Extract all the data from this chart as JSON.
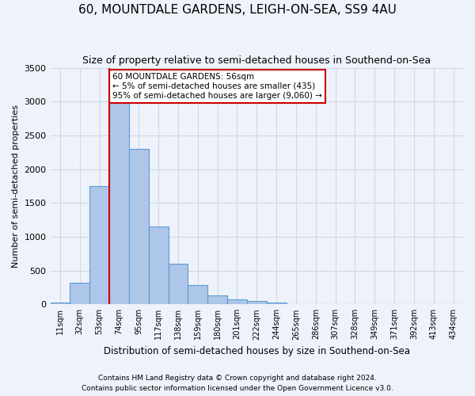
{
  "title": "60, MOUNTDALE GARDENS, LEIGH-ON-SEA, SS9 4AU",
  "subtitle": "Size of property relative to semi-detached houses in Southend-on-Sea",
  "xlabel": "Distribution of semi-detached houses by size in Southend-on-Sea",
  "ylabel": "Number of semi-detached properties",
  "footnote1": "Contains HM Land Registry data © Crown copyright and database right 2024.",
  "footnote2": "Contains public sector information licensed under the Open Government Licence v3.0.",
  "bin_labels": [
    "11sqm",
    "32sqm",
    "53sqm",
    "74sqm",
    "95sqm",
    "117sqm",
    "138sqm",
    "159sqm",
    "180sqm",
    "201sqm",
    "222sqm",
    "244sqm",
    "265sqm",
    "286sqm",
    "307sqm",
    "328sqm",
    "349sqm",
    "371sqm",
    "392sqm",
    "413sqm",
    "434sqm"
  ],
  "bar_values": [
    30,
    320,
    1750,
    3050,
    2300,
    1150,
    600,
    280,
    130,
    70,
    50,
    30,
    5,
    0,
    0,
    0,
    0,
    0,
    0,
    0,
    0
  ],
  "bar_color": "#AEC6E8",
  "bar_edge_color": "#5B9BD5",
  "grid_color": "#D0D8E8",
  "background_color": "#EEF2FA",
  "vline_x_index": 3,
  "vline_color": "#CC0000",
  "annotation_text_line1": "60 MOUNTDALE GARDENS: 56sqm",
  "annotation_text_line2": "← 5% of semi-detached houses are smaller (435)",
  "annotation_text_line3": "95% of semi-detached houses are larger (9,060) →",
  "ylim": [
    0,
    3500
  ],
  "yticks": [
    0,
    500,
    1000,
    1500,
    2000,
    2500,
    3000,
    3500
  ]
}
